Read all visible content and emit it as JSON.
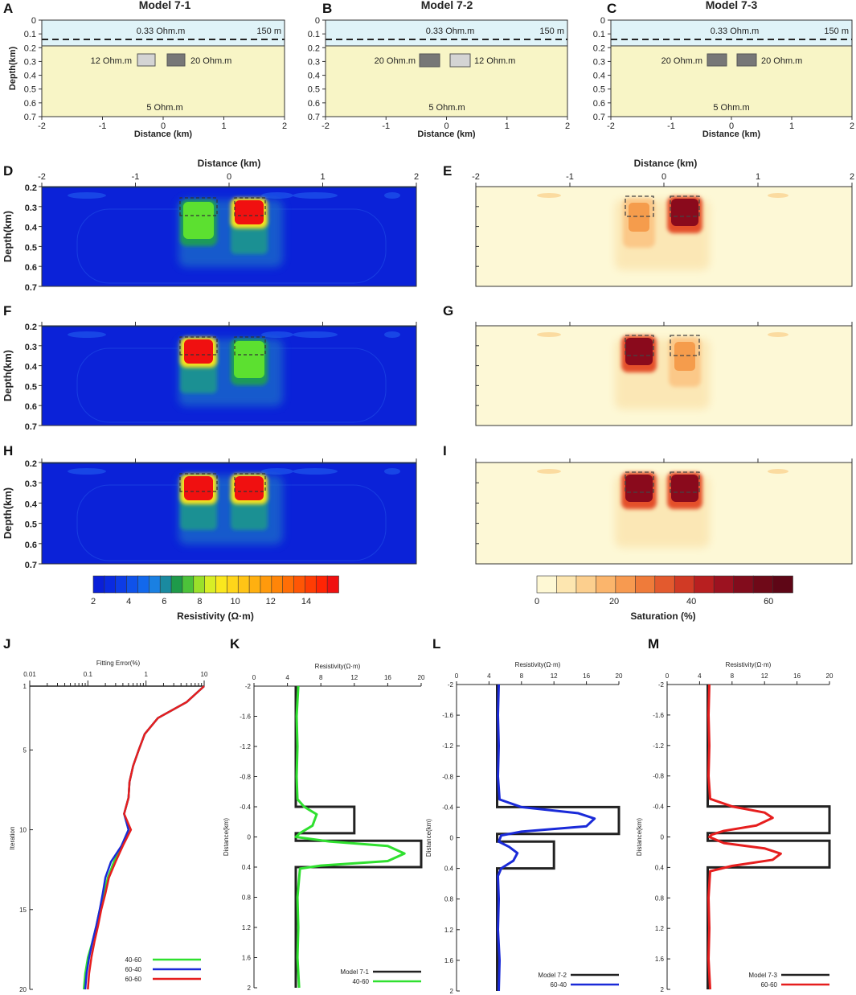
{
  "panel_letters": [
    "A",
    "B",
    "C",
    "D",
    "E",
    "F",
    "G",
    "H",
    "I",
    "J",
    "K",
    "L",
    "M"
  ],
  "models": [
    {
      "letter": "A",
      "title": "Model 7-1",
      "top_layer": "0.33 Ohm.m",
      "top_depth": "150 m",
      "bottom": "5 Ohm.m",
      "left_block": {
        "label": "12 Ohm.m",
        "color": "#d4d4d4"
      },
      "right_block": {
        "label": "20 Ohm.m",
        "color": "#777777"
      }
    },
    {
      "letter": "B",
      "title": "Model 7-2",
      "top_layer": "0.33 Ohm.m",
      "top_depth": "150 m",
      "bottom": "5 Ohm.m",
      "left_block": {
        "label": "20 Ohm.m",
        "color": "#777777"
      },
      "right_block": {
        "label": "12 Ohm.m",
        "color": "#d4d4d4"
      }
    },
    {
      "letter": "C",
      "title": "Model 7-3",
      "top_layer": "0.33 Ohm.m",
      "top_depth": "150 m",
      "bottom": "5 Ohm.m",
      "left_block": {
        "label": "20 Ohm.m",
        "color": "#777777"
      },
      "right_block": {
        "label": "20 Ohm.m",
        "color": "#777777"
      }
    }
  ],
  "model_axes": {
    "ylabel": "Depth(km)",
    "xlabel": "Distance (km)",
    "yticks": [
      "0",
      "0.1",
      "0.2",
      "0.3",
      "0.4",
      "0.5",
      "0.6",
      "0.7"
    ],
    "xticks": [
      "-2",
      "-1",
      "0",
      "1",
      "2"
    ],
    "water_color": "#dff3f8",
    "earth_color": "#f8f5c6"
  },
  "section_axes": {
    "xlabel": "Distance (km)",
    "ylabel": "Depth(km)",
    "xticks": [
      "-2",
      "-1",
      "0",
      "1",
      "2"
    ],
    "yticks": [
      "0.2",
      "0.3",
      "0.4",
      "0.5",
      "0.6",
      "0.7"
    ]
  },
  "colorbars": {
    "resistivity": {
      "label": "Resistivity (Ω·m)",
      "ticks": [
        "2",
        "4",
        "6",
        "8",
        "10",
        "12",
        "14"
      ],
      "colors": [
        "#0a1fd8",
        "#0a2ae0",
        "#0d3ce6",
        "#0f52ea",
        "#1268ec",
        "#1a80e2",
        "#1a8aa0",
        "#1e9a4a",
        "#4cc23a",
        "#9ae02a",
        "#d8ee26",
        "#fae71e",
        "#ffd51a",
        "#ffc416",
        "#ffb010",
        "#ff9a0c",
        "#ff8508",
        "#ff6e06",
        "#ff5605",
        "#ff3d04",
        "#ff2504",
        "#f01010"
      ]
    },
    "saturation": {
      "label": "Saturation (%)",
      "ticks": [
        "0",
        "20",
        "40",
        "60"
      ],
      "colors": [
        "#fef8d4",
        "#fde6b0",
        "#fccf8e",
        "#fbb56c",
        "#f79a50",
        "#ef7b3a",
        "#e35a2e",
        "#d13a25",
        "#b81f20",
        "#9c1220",
        "#820c1c",
        "#6f0918",
        "#5e0616"
      ]
    }
  },
  "chart_data": [
    {
      "type": "line",
      "panel": "J",
      "xlabel": "Fitting Error(%)",
      "ylabel": "Iteration",
      "xscale": "log",
      "xlim": [
        0.01,
        10
      ],
      "ylim": [
        1,
        20
      ],
      "xticks": [
        "0.01",
        "0.1",
        "1",
        "10"
      ],
      "yticks": [
        "1",
        "5",
        "10",
        "15",
        "20"
      ],
      "series": [
        {
          "name": "40-60",
          "color": "#2fe02f",
          "points": [
            [
              10,
              1
            ],
            [
              5,
              2
            ],
            [
              1.6,
              3
            ],
            [
              0.95,
              4
            ],
            [
              0.75,
              5
            ],
            [
              0.6,
              6
            ],
            [
              0.52,
              7
            ],
            [
              0.5,
              8
            ],
            [
              0.42,
              9
            ],
            [
              0.5,
              10
            ],
            [
              0.38,
              11
            ],
            [
              0.28,
              12
            ],
            [
              0.22,
              13
            ],
            [
              0.19,
              14
            ],
            [
              0.16,
              15
            ],
            [
              0.14,
              16
            ],
            [
              0.12,
              17
            ],
            [
              0.1,
              18
            ],
            [
              0.09,
              19
            ],
            [
              0.085,
              20
            ]
          ]
        },
        {
          "name": "60-40",
          "color": "#1a2ad8",
          "points": [
            [
              10,
              1
            ],
            [
              5,
              2
            ],
            [
              1.6,
              3
            ],
            [
              0.95,
              4
            ],
            [
              0.75,
              5
            ],
            [
              0.6,
              6
            ],
            [
              0.52,
              7
            ],
            [
              0.5,
              8
            ],
            [
              0.42,
              9
            ],
            [
              0.5,
              10
            ],
            [
              0.38,
              11
            ],
            [
              0.25,
              12
            ],
            [
              0.2,
              13
            ],
            [
              0.18,
              14
            ],
            [
              0.16,
              15
            ],
            [
              0.14,
              16
            ],
            [
              0.12,
              17
            ],
            [
              0.105,
              18
            ],
            [
              0.095,
              19
            ],
            [
              0.09,
              20
            ]
          ]
        },
        {
          "name": "60-60",
          "color": "#e61e1e",
          "points": [
            [
              10,
              1
            ],
            [
              5,
              2
            ],
            [
              1.6,
              3
            ],
            [
              0.95,
              4
            ],
            [
              0.75,
              5
            ],
            [
              0.6,
              6
            ],
            [
              0.52,
              7
            ],
            [
              0.5,
              8
            ],
            [
              0.42,
              9
            ],
            [
              0.55,
              10
            ],
            [
              0.4,
              11
            ],
            [
              0.3,
              12
            ],
            [
              0.23,
              13
            ],
            [
              0.2,
              14
            ],
            [
              0.17,
              15
            ],
            [
              0.15,
              16
            ],
            [
              0.13,
              17
            ],
            [
              0.115,
              18
            ],
            [
              0.105,
              19
            ],
            [
              0.1,
              20
            ]
          ]
        }
      ]
    },
    {
      "type": "line",
      "panel": "K",
      "xlabel": "Resistivity(Ω·m)",
      "ylabel": "Distance(km)",
      "xlim": [
        0,
        20
      ],
      "ylim": [
        -2,
        2
      ],
      "xticks": [
        "0",
        "4",
        "8",
        "12",
        "16",
        "20"
      ],
      "yticks": [
        "-2",
        "-1.6",
        "-1.2",
        "-0.8",
        "-0.4",
        "0",
        "0.4",
        "0.8",
        "1.2",
        "1.6",
        "2"
      ],
      "model": {
        "name": "Model 7-1",
        "color": "#222222",
        "points": [
          [
            5,
            -2
          ],
          [
            5,
            -0.4
          ],
          [
            12,
            -0.4
          ],
          [
            12,
            -0.05
          ],
          [
            5,
            -0.05
          ],
          [
            5,
            0.05
          ],
          [
            20,
            0.05
          ],
          [
            20,
            0.4
          ],
          [
            5,
            0.4
          ],
          [
            5,
            2
          ]
        ]
      },
      "series": [
        {
          "name": "40-60",
          "color": "#2fe02f",
          "points": [
            [
              5.3,
              -2
            ],
            [
              5.1,
              -1.6
            ],
            [
              5.2,
              -1.2
            ],
            [
              5.1,
              -0.8
            ],
            [
              5.2,
              -0.5
            ],
            [
              6,
              -0.4
            ],
            [
              7.5,
              -0.3
            ],
            [
              7,
              -0.15
            ],
            [
              5.5,
              -0.05
            ],
            [
              5,
              0
            ],
            [
              9,
              0.06
            ],
            [
              16,
              0.12
            ],
            [
              18,
              0.22
            ],
            [
              16,
              0.32
            ],
            [
              8,
              0.38
            ],
            [
              5.5,
              0.42
            ],
            [
              5.2,
              0.8
            ],
            [
              5.3,
              1.2
            ],
            [
              5.2,
              1.6
            ],
            [
              5.4,
              2
            ]
          ]
        }
      ]
    },
    {
      "type": "line",
      "panel": "L",
      "xlabel": "Resistivity(Ω·m)",
      "ylabel": "Distance(km)",
      "xlim": [
        0,
        20
      ],
      "ylim": [
        -2,
        2
      ],
      "xticks": [
        "0",
        "4",
        "8",
        "12",
        "16",
        "20"
      ],
      "yticks": [
        "-2",
        "-1.6",
        "-1.2",
        "-0.8",
        "-0.4",
        "0",
        "0.4",
        "0.8",
        "1.2",
        "1.6",
        "2"
      ],
      "model": {
        "name": "Model 7-2",
        "color": "#222222",
        "points": [
          [
            5,
            -2
          ],
          [
            5,
            -0.4
          ],
          [
            20,
            -0.4
          ],
          [
            20,
            -0.05
          ],
          [
            5,
            -0.05
          ],
          [
            5,
            0.05
          ],
          [
            12,
            0.05
          ],
          [
            12,
            0.4
          ],
          [
            5,
            0.4
          ],
          [
            5,
            2
          ]
        ]
      },
      "series": [
        {
          "name": "60-40",
          "color": "#1a2ad8",
          "points": [
            [
              5.2,
              -2
            ],
            [
              5.1,
              -1.6
            ],
            [
              5.2,
              -1.2
            ],
            [
              5.1,
              -0.8
            ],
            [
              5.3,
              -0.5
            ],
            [
              8,
              -0.4
            ],
            [
              15,
              -0.32
            ],
            [
              17,
              -0.25
            ],
            [
              16,
              -0.15
            ],
            [
              8,
              -0.08
            ],
            [
              5.5,
              -0.03
            ],
            [
              5.2,
              0.05
            ],
            [
              6.5,
              0.12
            ],
            [
              7.5,
              0.2
            ],
            [
              7,
              0.3
            ],
            [
              5.5,
              0.4
            ],
            [
              5.1,
              0.5
            ],
            [
              5.2,
              0.8
            ],
            [
              5.1,
              1.2
            ],
            [
              5.3,
              1.6
            ],
            [
              5.2,
              2
            ]
          ]
        }
      ]
    },
    {
      "type": "line",
      "panel": "M",
      "xlabel": "Resistivity(Ω·m)",
      "ylabel": "Distance(km)",
      "xlim": [
        0,
        20
      ],
      "ylim": [
        -2,
        2
      ],
      "xticks": [
        "0",
        "4",
        "8",
        "12",
        "16",
        "20"
      ],
      "yticks": [
        "-2",
        "-1.6",
        "-1.2",
        "-0.8",
        "-0.4",
        "0",
        "0.4",
        "0.8",
        "1.2",
        "1.6",
        "2"
      ],
      "model": {
        "name": "Model 7-3",
        "color": "#222222",
        "points": [
          [
            5,
            -2
          ],
          [
            5,
            -0.4
          ],
          [
            20,
            -0.4
          ],
          [
            20,
            -0.05
          ],
          [
            5,
            -0.05
          ],
          [
            5,
            0.05
          ],
          [
            20,
            0.05
          ],
          [
            20,
            0.4
          ],
          [
            5,
            0.4
          ],
          [
            5,
            2
          ]
        ]
      },
      "series": [
        {
          "name": "60-60",
          "color": "#e61e1e",
          "points": [
            [
              5.2,
              -2
            ],
            [
              5.1,
              -1.6
            ],
            [
              5.2,
              -1.2
            ],
            [
              5.1,
              -0.8
            ],
            [
              5.3,
              -0.5
            ],
            [
              8,
              -0.4
            ],
            [
              12,
              -0.32
            ],
            [
              13,
              -0.25
            ],
            [
              11,
              -0.15
            ],
            [
              7,
              -0.08
            ],
            [
              5.5,
              -0.03
            ],
            [
              5.2,
              0
            ],
            [
              7,
              0.08
            ],
            [
              12,
              0.15
            ],
            [
              14,
              0.22
            ],
            [
              13,
              0.3
            ],
            [
              8,
              0.38
            ],
            [
              5.3,
              0.45
            ],
            [
              5.1,
              0.8
            ],
            [
              5.2,
              1.2
            ],
            [
              5.1,
              1.6
            ],
            [
              5.3,
              2
            ]
          ]
        }
      ]
    }
  ]
}
